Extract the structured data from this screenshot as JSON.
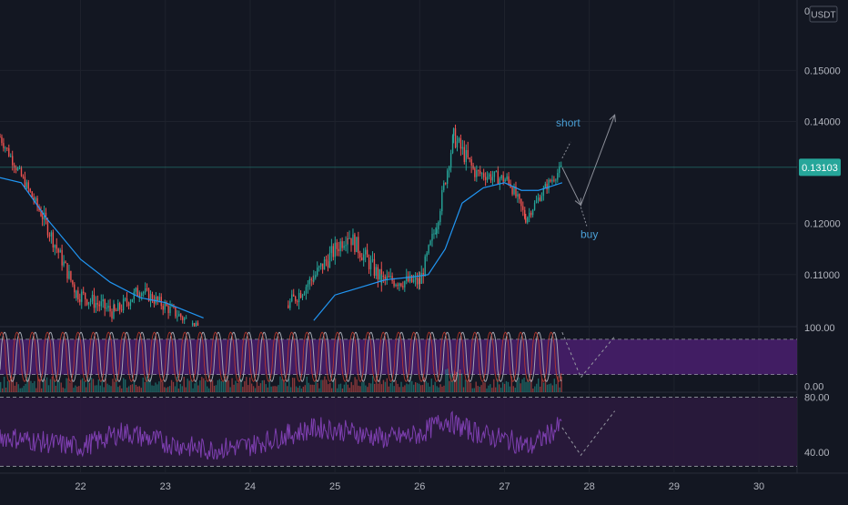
{
  "chart_data": [
    {
      "type": "candlestick",
      "name": "price",
      "currency_label": "USDT",
      "price_ticks": [
        "0.15000",
        "0.14000",
        "0.13103",
        "0.12000",
        "0.11000"
      ],
      "price_tick_values": [
        0.15,
        0.14,
        0.12,
        0.11
      ],
      "last_price": "0.13103",
      "last_price_value": 0.13103,
      "top_label": "0",
      "ylim": [
        0.0998,
        0.1638
      ],
      "x_labels": [
        "22",
        "23",
        "24",
        "25",
        "26",
        "27",
        "28",
        "29",
        "30"
      ],
      "xlim": [
        21.05,
        30.45
      ],
      "candles_segments": [
        {
          "from": [
            21.05,
            0.137
          ],
          "to": [
            21.55,
            0.1215
          ],
          "noise": 0.0022
        },
        {
          "from": [
            21.55,
            0.1215
          ],
          "to": [
            21.95,
            0.1065
          ],
          "noise": 0.003
        },
        {
          "from": [
            21.95,
            0.1065
          ],
          "to": [
            22.4,
            0.1025
          ],
          "noise": 0.003
        },
        {
          "from": [
            22.4,
            0.1025
          ],
          "to": [
            22.7,
            0.107
          ],
          "noise": 0.0028
        },
        {
          "from": [
            22.7,
            0.107
          ],
          "to": [
            23.3,
            0.1005
          ],
          "noise": 0.0025
        },
        {
          "from": [
            23.3,
            0.1005
          ],
          "to": [
            23.4,
            0.0998
          ],
          "noise": 0.001
        },
        {
          "from": [
            24.45,
            0.104
          ],
          "to": [
            24.75,
            0.1095
          ],
          "noise": 0.003
        },
        {
          "from": [
            24.75,
            0.1095
          ],
          "to": [
            25.15,
            0.118
          ],
          "noise": 0.0035
        },
        {
          "from": [
            25.15,
            0.118
          ],
          "to": [
            25.55,
            0.109
          ],
          "noise": 0.0035
        },
        {
          "from": [
            25.55,
            0.109
          ],
          "to": [
            26.0,
            0.1085
          ],
          "noise": 0.003
        },
        {
          "from": [
            26.0,
            0.1085
          ],
          "to": [
            26.2,
            0.12
          ],
          "noise": 0.003
        },
        {
          "from": [
            26.2,
            0.12
          ],
          "to": [
            26.4,
            0.137
          ],
          "noise": 0.003
        },
        {
          "from": [
            26.4,
            0.137
          ],
          "to": [
            26.65,
            0.13
          ],
          "noise": 0.0035
        },
        {
          "from": [
            26.65,
            0.13
          ],
          "to": [
            27.05,
            0.1285
          ],
          "noise": 0.0025
        },
        {
          "from": [
            27.05,
            0.1285
          ],
          "to": [
            27.25,
            0.121
          ],
          "noise": 0.0025
        },
        {
          "from": [
            27.25,
            0.121
          ],
          "to": [
            27.5,
            0.1275
          ],
          "noise": 0.002
        },
        {
          "from": [
            27.5,
            0.1275
          ],
          "to": [
            27.68,
            0.131
          ],
          "noise": 0.002
        }
      ],
      "moving_average": {
        "color": "#2196f3",
        "points": [
          [
            21.05,
            0.129
          ],
          [
            21.3,
            0.128
          ],
          [
            21.6,
            0.121
          ],
          [
            22.0,
            0.113
          ],
          [
            22.35,
            0.1085
          ],
          [
            22.7,
            0.1055
          ],
          [
            23.0,
            0.1045
          ],
          [
            23.3,
            0.1025
          ],
          [
            23.45,
            0.1015
          ],
          [
            24.75,
            0.101
          ],
          [
            25.0,
            0.106
          ],
          [
            25.3,
            0.1075
          ],
          [
            25.6,
            0.109
          ],
          [
            25.9,
            0.1095
          ],
          [
            26.1,
            0.11
          ],
          [
            26.3,
            0.115
          ],
          [
            26.5,
            0.124
          ],
          [
            26.75,
            0.127
          ],
          [
            27.0,
            0.128
          ],
          [
            27.2,
            0.1265
          ],
          [
            27.4,
            0.1265
          ],
          [
            27.68,
            0.128
          ]
        ]
      },
      "annotations": [
        {
          "text": "short",
          "color": "#4a9fd5",
          "x": 27.75,
          "y": 0.139
        },
        {
          "text": "buy",
          "color": "#4a9fd5",
          "x": 28.0,
          "y": 0.1172
        }
      ],
      "projection": {
        "color": "#8c8f99",
        "path": [
          [
            27.68,
            0.131
          ],
          [
            27.9,
            0.1236
          ],
          [
            28.3,
            0.1413
          ]
        ],
        "dashed": [
          [
            [
              27.68,
              0.1328
            ],
            [
              27.78,
              0.136
            ]
          ],
          [
            [
              27.9,
              0.1232
            ],
            [
              27.97,
              0.1195
            ]
          ]
        ]
      },
      "current_price_line": true
    },
    {
      "type": "line",
      "name": "oscillator",
      "ticks": [
        "100.00",
        "0.00"
      ],
      "tick_values": [
        100,
        0
      ],
      "ylim": [
        -10,
        100
      ],
      "band": [
        20,
        80
      ],
      "band_color": "#4a1e6e",
      "series": [
        {
          "color": "#b0b4be",
          "wave": {
            "period": 0.18,
            "phase": 0.0
          }
        },
        {
          "color": "#c0392b",
          "wave": {
            "period": 0.18,
            "phase": 0.035
          }
        }
      ],
      "projection": [
        [
          27.68,
          92
        ],
        [
          27.9,
          15
        ],
        [
          28.3,
          85
        ]
      ]
    },
    {
      "type": "line",
      "name": "rsi",
      "ticks": [
        "80.00",
        "40.00"
      ],
      "tick_values": [
        80,
        40
      ],
      "ylim": [
        25,
        83
      ],
      "band": [
        30,
        80
      ],
      "band_color": "#2b1a3d",
      "series": [
        {
          "color": "#7e3fb0",
          "segments": [
            [
              21.05,
              52
            ],
            [
              21.5,
              48
            ],
            [
              22.0,
              44
            ],
            [
              22.5,
              55
            ],
            [
              23.0,
              47
            ],
            [
              23.5,
              42
            ],
            [
              24.0,
              45
            ],
            [
              24.45,
              53
            ],
            [
              24.8,
              58
            ],
            [
              25.2,
              55
            ],
            [
              25.6,
              50
            ],
            [
              26.0,
              53
            ],
            [
              26.3,
              64
            ],
            [
              26.5,
              58
            ],
            [
              26.8,
              52
            ],
            [
              27.05,
              49
            ],
            [
              27.3,
              44
            ],
            [
              27.68,
              60
            ]
          ]
        }
      ],
      "projection": [
        [
          27.68,
          58
        ],
        [
          27.9,
          38
        ],
        [
          28.3,
          70
        ]
      ]
    }
  ]
}
